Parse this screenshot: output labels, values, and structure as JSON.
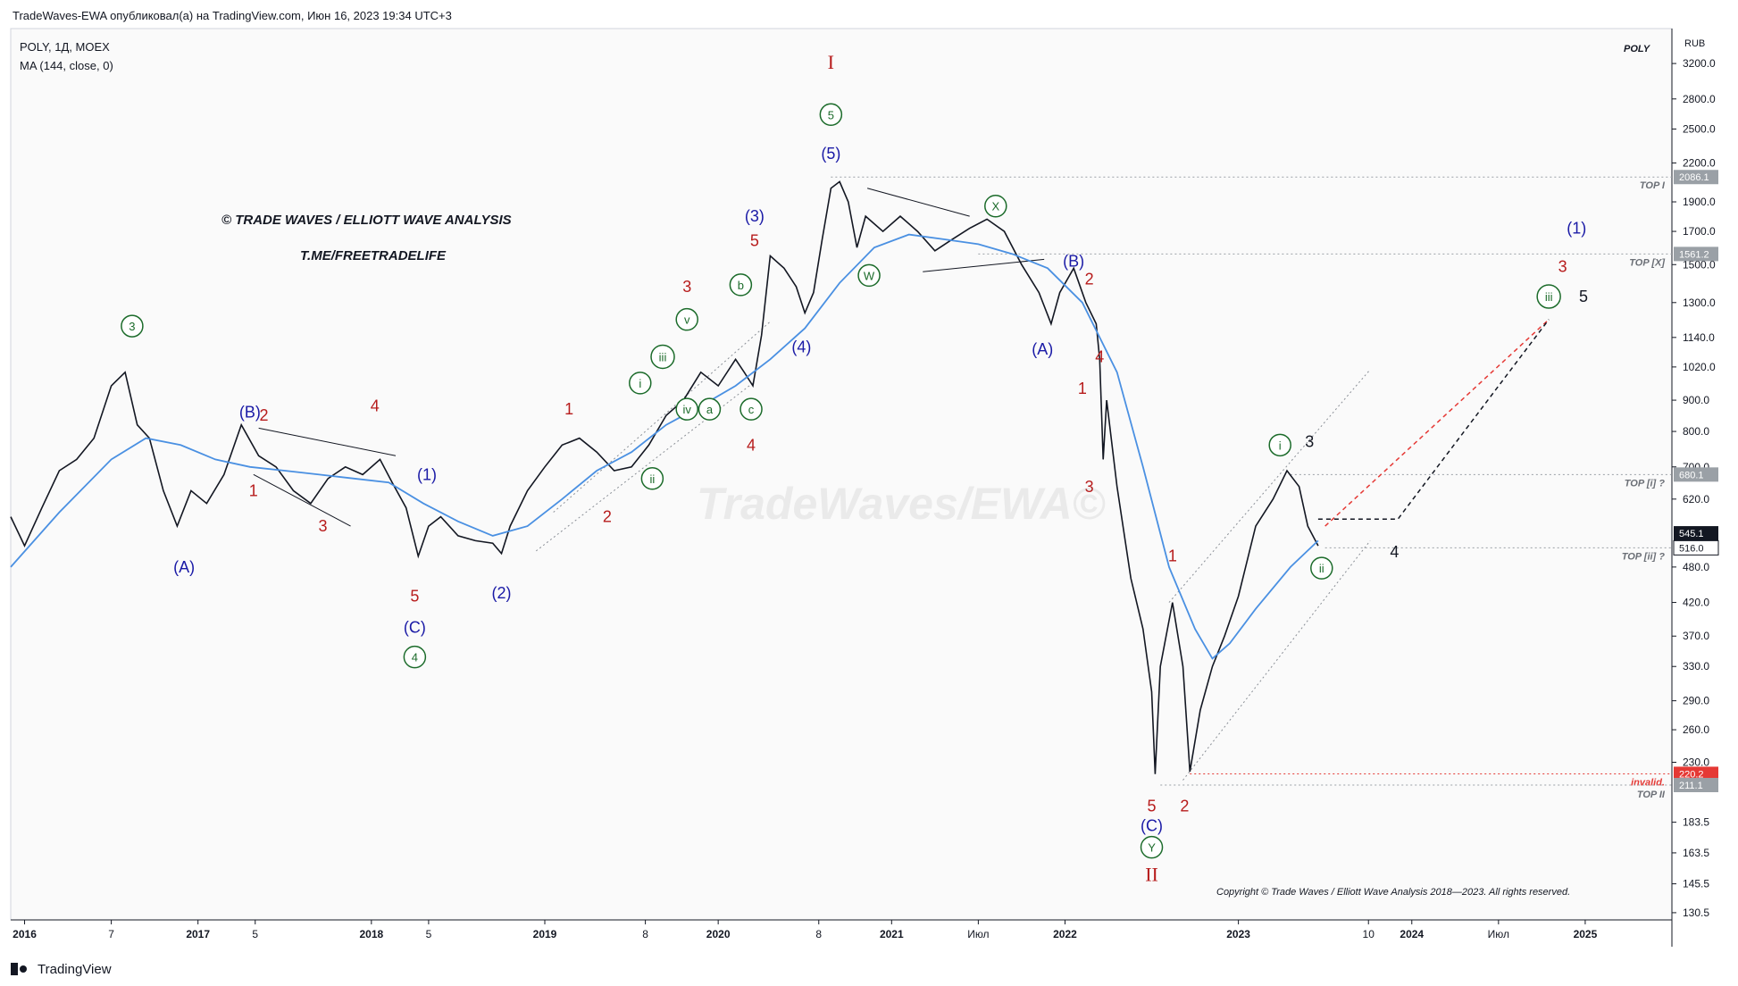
{
  "header": {
    "published_line": "TradeWaves-EWA опубликовал(а) на TradingView.com, Июн 16, 2023 19:34 UTC+3",
    "symbol_line": "POLY, 1Д, MOEX",
    "indicator_line": "MA (144, close, 0)",
    "symbol_tag": "POLY",
    "currency": "RUB"
  },
  "footer": {
    "brand": "TradingView"
  },
  "watermark": "TradeWaves/EWA©",
  "title_lines": [
    "© TRADE WAVES / ELLIOTT WAVE ANALYSIS",
    "T.ME/FREETRADELIFE"
  ],
  "copyright": "Copyright © Trade Waves / Elliott Wave Analysis 2018—2023. All rights reserved.",
  "colors": {
    "price": "#131722",
    "ma": "#4a90e2",
    "red": "#b71c1c",
    "blue": "#1a1aa6",
    "green": "#1b6b2a",
    "black": "#131722",
    "dashed_red": "#e53935",
    "dashed_black": "#131722"
  },
  "chart_data": {
    "type": "line",
    "scale": "log",
    "y_ticks": [
      3200.0,
      2800.0,
      2500.0,
      2200.0,
      1900.0,
      1700.0,
      1500.0,
      1300.0,
      1140.0,
      1020.0,
      900.0,
      800.0,
      700.0,
      620.0,
      480.0,
      420.0,
      370.0,
      330.0,
      290.0,
      260.0,
      230.0,
      183.5,
      163.5,
      145.5,
      130.5
    ],
    "x_ticks": [
      "2016",
      "7",
      "2017",
      "5",
      "2018",
      "5",
      "2019",
      "8",
      "2020",
      "8",
      "2021",
      "Июл",
      "2022",
      "2023",
      "10",
      "2024",
      "Июл",
      "2025"
    ],
    "x_tick_bold": [
      true,
      false,
      true,
      false,
      true,
      false,
      true,
      false,
      true,
      false,
      true,
      false,
      true,
      true,
      false,
      true,
      false,
      true
    ],
    "price_labels": [
      {
        "value": 2086.1,
        "style": "gray"
      },
      {
        "value": 1561.2,
        "style": "gray"
      },
      {
        "value": 680.1,
        "style": "gray"
      },
      {
        "value": 545.1,
        "style": "black"
      },
      {
        "value": 516.0,
        "style": "white"
      },
      {
        "value": 220.2,
        "style": "red"
      },
      {
        "value": 211.1,
        "style": "gray"
      }
    ],
    "levels": [
      {
        "label": "TOP I",
        "value": 2086.1
      },
      {
        "label": "TOP [X]",
        "value": 1561.2
      },
      {
        "label": "TOP [i] ?",
        "value": 680.1
      },
      {
        "label": "TOP [ii] ?",
        "value": 516.0
      },
      {
        "label": "invalid.",
        "value": 220.2
      },
      {
        "label": "TOP II",
        "value": 211.1
      }
    ],
    "series": [
      {
        "name": "POLY",
        "points": [
          [
            2015.92,
            580
          ],
          [
            2016.0,
            520
          ],
          [
            2016.1,
            600
          ],
          [
            2016.2,
            690
          ],
          [
            2016.3,
            720
          ],
          [
            2016.4,
            780
          ],
          [
            2016.5,
            950
          ],
          [
            2016.58,
            1000
          ],
          [
            2016.65,
            820
          ],
          [
            2016.72,
            780
          ],
          [
            2016.8,
            640
          ],
          [
            2016.88,
            560
          ],
          [
            2016.96,
            640
          ],
          [
            2017.05,
            610
          ],
          [
            2017.15,
            680
          ],
          [
            2017.25,
            820
          ],
          [
            2017.35,
            730
          ],
          [
            2017.45,
            700
          ],
          [
            2017.55,
            640
          ],
          [
            2017.65,
            610
          ],
          [
            2017.75,
            670
          ],
          [
            2017.85,
            700
          ],
          [
            2017.95,
            680
          ],
          [
            2018.05,
            720
          ],
          [
            2018.12,
            660
          ],
          [
            2018.2,
            600
          ],
          [
            2018.27,
            500
          ],
          [
            2018.33,
            560
          ],
          [
            2018.4,
            580
          ],
          [
            2018.5,
            540
          ],
          [
            2018.6,
            530
          ],
          [
            2018.7,
            525
          ],
          [
            2018.75,
            505
          ],
          [
            2018.8,
            560
          ],
          [
            2018.9,
            640
          ],
          [
            2019.0,
            700
          ],
          [
            2019.1,
            760
          ],
          [
            2019.2,
            780
          ],
          [
            2019.3,
            740
          ],
          [
            2019.4,
            690
          ],
          [
            2019.5,
            700
          ],
          [
            2019.6,
            760
          ],
          [
            2019.7,
            850
          ],
          [
            2019.8,
            900
          ],
          [
            2019.9,
            1000
          ],
          [
            2020.0,
            950
          ],
          [
            2020.1,
            1050
          ],
          [
            2020.15,
            1000
          ],
          [
            2020.2,
            950
          ],
          [
            2020.25,
            1150
          ],
          [
            2020.3,
            1550
          ],
          [
            2020.38,
            1480
          ],
          [
            2020.45,
            1380
          ],
          [
            2020.5,
            1250
          ],
          [
            2020.55,
            1350
          ],
          [
            2020.6,
            1650
          ],
          [
            2020.65,
            2000
          ],
          [
            2020.7,
            2050
          ],
          [
            2020.75,
            1900
          ],
          [
            2020.8,
            1600
          ],
          [
            2020.85,
            1800
          ],
          [
            2020.95,
            1700
          ],
          [
            2021.05,
            1800
          ],
          [
            2021.15,
            1700
          ],
          [
            2021.25,
            1580
          ],
          [
            2021.35,
            1650
          ],
          [
            2021.45,
            1720
          ],
          [
            2021.55,
            1780
          ],
          [
            2021.65,
            1700
          ],
          [
            2021.75,
            1500
          ],
          [
            2021.85,
            1350
          ],
          [
            2021.92,
            1200
          ],
          [
            2021.97,
            1350
          ],
          [
            2022.05,
            1480
          ],
          [
            2022.12,
            1300
          ],
          [
            2022.18,
            1200
          ],
          [
            2022.2,
            1050
          ],
          [
            2022.22,
            720
          ],
          [
            2022.24,
            900
          ],
          [
            2022.3,
            650
          ],
          [
            2022.38,
            460
          ],
          [
            2022.45,
            380
          ],
          [
            2022.5,
            300
          ],
          [
            2022.52,
            220
          ],
          [
            2022.55,
            330
          ],
          [
            2022.62,
            420
          ],
          [
            2022.68,
            330
          ],
          [
            2022.72,
            222
          ],
          [
            2022.78,
            280
          ],
          [
            2022.85,
            330
          ],
          [
            2022.92,
            370
          ],
          [
            2023.0,
            430
          ],
          [
            2023.1,
            560
          ],
          [
            2023.2,
            620
          ],
          [
            2023.28,
            690
          ],
          [
            2023.35,
            650
          ],
          [
            2023.4,
            560
          ],
          [
            2023.46,
            520
          ]
        ]
      },
      {
        "name": "MA (144, close, 0)",
        "points": [
          [
            2015.92,
            480
          ],
          [
            2016.2,
            590
          ],
          [
            2016.5,
            720
          ],
          [
            2016.7,
            780
          ],
          [
            2016.9,
            760
          ],
          [
            2017.1,
            720
          ],
          [
            2017.3,
            700
          ],
          [
            2017.5,
            690
          ],
          [
            2017.7,
            680
          ],
          [
            2017.9,
            670
          ],
          [
            2018.1,
            660
          ],
          [
            2018.3,
            610
          ],
          [
            2018.5,
            570
          ],
          [
            2018.7,
            540
          ],
          [
            2018.9,
            560
          ],
          [
            2019.1,
            620
          ],
          [
            2019.3,
            690
          ],
          [
            2019.5,
            740
          ],
          [
            2019.7,
            820
          ],
          [
            2019.9,
            880
          ],
          [
            2020.1,
            950
          ],
          [
            2020.3,
            1050
          ],
          [
            2020.5,
            1180
          ],
          [
            2020.7,
            1400
          ],
          [
            2020.9,
            1600
          ],
          [
            2021.1,
            1680
          ],
          [
            2021.3,
            1650
          ],
          [
            2021.5,
            1620
          ],
          [
            2021.7,
            1560
          ],
          [
            2021.9,
            1480
          ],
          [
            2022.1,
            1300
          ],
          [
            2022.3,
            1000
          ],
          [
            2022.45,
            700
          ],
          [
            2022.6,
            480
          ],
          [
            2022.75,
            380
          ],
          [
            2022.85,
            340
          ],
          [
            2022.95,
            360
          ],
          [
            2023.1,
            410
          ],
          [
            2023.3,
            480
          ],
          [
            2023.46,
            530
          ]
        ]
      }
    ],
    "wave_labels": [
      {
        "t": "3",
        "x": 2016.62,
        "y": 1190,
        "style": "circle-green"
      },
      {
        "t": "(A)",
        "x": 2016.92,
        "y": 480,
        "style": "blue"
      },
      {
        "t": "(B)",
        "x": 2017.3,
        "y": 860,
        "style": "blue"
      },
      {
        "t": "1",
        "x": 2017.32,
        "y": 640,
        "style": "red"
      },
      {
        "t": "2",
        "x": 2017.38,
        "y": 850,
        "style": "red"
      },
      {
        "t": "3",
        "x": 2017.72,
        "y": 560,
        "style": "red"
      },
      {
        "t": "4",
        "x": 2018.02,
        "y": 880,
        "style": "red"
      },
      {
        "t": "(1)",
        "x": 2018.32,
        "y": 680,
        "style": "blue"
      },
      {
        "t": "5",
        "x": 2018.25,
        "y": 430,
        "style": "red"
      },
      {
        "t": "(C)",
        "x": 2018.25,
        "y": 382,
        "style": "blue"
      },
      {
        "t": "4",
        "x": 2018.25,
        "y": 342,
        "style": "circle-green"
      },
      {
        "t": "(2)",
        "x": 2018.75,
        "y": 435,
        "style": "blue"
      },
      {
        "t": "1",
        "x": 2019.14,
        "y": 870,
        "style": "red"
      },
      {
        "t": "2",
        "x": 2019.36,
        "y": 580,
        "style": "red"
      },
      {
        "t": "i",
        "x": 2019.55,
        "y": 960,
        "style": "circle-green"
      },
      {
        "t": "ii",
        "x": 2019.62,
        "y": 670,
        "style": "circle-green"
      },
      {
        "t": "iii",
        "x": 2019.68,
        "y": 1060,
        "style": "circle-green"
      },
      {
        "t": "iv",
        "x": 2019.82,
        "y": 870,
        "style": "circle-green"
      },
      {
        "t": "a",
        "x": 2019.95,
        "y": 870,
        "style": "circle-green"
      },
      {
        "t": "3",
        "x": 2019.82,
        "y": 1380,
        "style": "red"
      },
      {
        "t": "v",
        "x": 2019.82,
        "y": 1220,
        "style": "circle-green"
      },
      {
        "t": "b",
        "x": 2020.13,
        "y": 1390,
        "style": "circle-green"
      },
      {
        "t": "c",
        "x": 2020.19,
        "y": 870,
        "style": "circle-green"
      },
      {
        "t": "4",
        "x": 2020.19,
        "y": 760,
        "style": "red"
      },
      {
        "t": "5",
        "x": 2020.21,
        "y": 1640,
        "style": "red"
      },
      {
        "t": "(3)",
        "x": 2020.21,
        "y": 1800,
        "style": "blue"
      },
      {
        "t": "(4)",
        "x": 2020.48,
        "y": 1100,
        "style": "blue"
      },
      {
        "t": "I",
        "x": 2020.65,
        "y": 3200,
        "style": "red-roman"
      },
      {
        "t": "5",
        "x": 2020.65,
        "y": 2640,
        "style": "circle-green"
      },
      {
        "t": "(5)",
        "x": 2020.65,
        "y": 2280,
        "style": "blue"
      },
      {
        "t": "W",
        "x": 2020.87,
        "y": 1440,
        "style": "circle-green"
      },
      {
        "t": "X",
        "x": 2021.6,
        "y": 1870,
        "style": "circle-green"
      },
      {
        "t": "(B)",
        "x": 2022.05,
        "y": 1520,
        "style": "blue"
      },
      {
        "t": "2",
        "x": 2022.14,
        "y": 1420,
        "style": "red"
      },
      {
        "t": "(A)",
        "x": 2021.87,
        "y": 1090,
        "style": "blue"
      },
      {
        "t": "4",
        "x": 2022.2,
        "y": 1060,
        "style": "red"
      },
      {
        "t": "1",
        "x": 2022.1,
        "y": 940,
        "style": "red"
      },
      {
        "t": "3",
        "x": 2022.14,
        "y": 650,
        "style": "red"
      },
      {
        "t": "1",
        "x": 2022.62,
        "y": 500,
        "style": "red"
      },
      {
        "t": "5",
        "x": 2022.5,
        "y": 195,
        "style": "red"
      },
      {
        "t": "2",
        "x": 2022.69,
        "y": 195,
        "style": "red"
      },
      {
        "t": "(C)",
        "x": 2022.5,
        "y": 181,
        "style": "blue"
      },
      {
        "t": "Y",
        "x": 2022.5,
        "y": 167,
        "style": "circle-green"
      },
      {
        "t": "II",
        "x": 2022.5,
        "y": 150,
        "style": "red-roman"
      },
      {
        "t": "i",
        "x": 2023.24,
        "y": 760,
        "style": "circle-green"
      },
      {
        "t": "3",
        "x": 2023.41,
        "y": 770,
        "style": "black"
      },
      {
        "t": "ii",
        "x": 2023.48,
        "y": 478,
        "style": "circle-green"
      },
      {
        "t": "4",
        "x": 2023.9,
        "y": 508,
        "style": "black"
      },
      {
        "t": "(1)",
        "x": 2024.95,
        "y": 1720,
        "style": "blue"
      },
      {
        "t": "3",
        "x": 2024.87,
        "y": 1490,
        "style": "red"
      },
      {
        "t": "iii",
        "x": 2024.79,
        "y": 1330,
        "style": "circle-green"
      },
      {
        "t": "5",
        "x": 2024.99,
        "y": 1330,
        "style": "black"
      }
    ],
    "trend_lines": [
      {
        "x1": 2017.35,
        "y1": 810,
        "x2": 2018.14,
        "y2": 730,
        "style": "solid"
      },
      {
        "x1": 2017.32,
        "y1": 680,
        "x2": 2017.88,
        "y2": 560,
        "style": "solid"
      },
      {
        "x1": 2020.86,
        "y1": 2000,
        "x2": 2021.45,
        "y2": 1800,
        "style": "solid"
      },
      {
        "x1": 2021.18,
        "y1": 1460,
        "x2": 2021.88,
        "y2": 1530,
        "style": "solid"
      },
      {
        "x1": 2019.05,
        "y1": 590,
        "x2": 2020.3,
        "y2": 1210,
        "style": "dotted"
      },
      {
        "x1": 2018.95,
        "y1": 510,
        "x2": 2020.2,
        "y2": 960,
        "style": "dotted"
      },
      {
        "x1": 2022.6,
        "y1": 420,
        "x2": 2023.76,
        "y2": 1010,
        "style": "dotted"
      },
      {
        "x1": 2022.68,
        "y1": 215,
        "x2": 2023.76,
        "y2": 530,
        "style": "dotted"
      }
    ],
    "projection_lines": [
      {
        "points": [
          [
            2023.5,
            560
          ],
          [
            2024.79,
            1220
          ]
        ],
        "style": "dashed-red"
      },
      {
        "points": [
          [
            2023.46,
            575
          ],
          [
            2023.92,
            575
          ],
          [
            2024.79,
            1220
          ]
        ],
        "style": "dashed-black"
      }
    ]
  }
}
